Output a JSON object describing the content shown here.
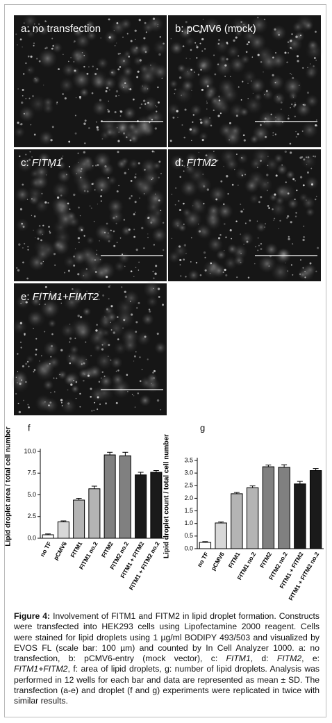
{
  "panels": [
    {
      "letter": "a:",
      "name": "no transfection"
    },
    {
      "letter": "b:",
      "name": "pCMV6 (mock)"
    },
    {
      "letter": "c:",
      "name": "FITM1"
    },
    {
      "letter": "d:",
      "name": "FITM2"
    },
    {
      "letter": "e:",
      "name": "FITM1+FIMT2"
    }
  ],
  "chart_data": [
    {
      "type": "bar",
      "title": "f",
      "ylabel": "Lipid droplet area / total cell number",
      "categories": [
        "no TF",
        "pCMV6",
        "FITM1",
        "FITM1 no.2",
        "FITM2",
        "FITM2 no.2",
        "FITM1 + FITM2",
        "FITM1 + FITM2 no.2"
      ],
      "values": [
        0.4,
        1.9,
        4.4,
        5.7,
        9.6,
        9.5,
        7.3,
        7.6
      ],
      "errors": [
        0.1,
        0.1,
        0.2,
        0.3,
        0.3,
        0.4,
        0.3,
        0.2
      ],
      "colors": [
        "#ffffff",
        "#d8d8d8",
        "#b4b4b4",
        "#b4b4b4",
        "#808080",
        "#808080",
        "#1a1a1a",
        "#1a1a1a"
      ],
      "ylim": [
        0,
        10
      ],
      "yticks": [
        {
          "value": 0,
          "label": "0.0"
        },
        {
          "value": 2.5,
          "label": "2.5"
        },
        {
          "value": 5,
          "label": "5.0"
        },
        {
          "value": 7.5,
          "label": "7.5"
        },
        {
          "value": 10,
          "label": "10.0"
        }
      ]
    },
    {
      "type": "bar",
      "title": "g",
      "ylabel": "Lipid droplet count / total cell number",
      "categories": [
        "no TF",
        "pCMV6",
        "FITM1",
        "FITM1 no.2",
        "FITM2",
        "FITM2 no.2",
        "FITM1 + FITM2",
        "FITM1 + FITM2 no.2"
      ],
      "values": [
        0.25,
        1.02,
        2.18,
        2.42,
        3.25,
        3.23,
        2.57,
        3.1
      ],
      "errors": [
        0.03,
        0.04,
        0.05,
        0.07,
        0.07,
        0.1,
        0.1,
        0.08
      ],
      "colors": [
        "#ffffff",
        "#d8d8d8",
        "#b4b4b4",
        "#b4b4b4",
        "#808080",
        "#808080",
        "#1a1a1a",
        "#1a1a1a"
      ],
      "ylim": [
        0,
        3.5
      ],
      "yticks": [
        {
          "value": 0,
          "label": "0.0"
        },
        {
          "value": 0.5,
          "label": "0.5"
        },
        {
          "value": 1,
          "label": "1.0"
        },
        {
          "value": 1.5,
          "label": "1.5"
        },
        {
          "value": 2,
          "label": "2.0"
        },
        {
          "value": 2.5,
          "label": "2.5"
        },
        {
          "value": 3,
          "label": "3.0"
        },
        {
          "value": 3.5,
          "label": "3.5"
        }
      ]
    }
  ],
  "caption": {
    "parts": [
      "Figure 4:",
      " Involvement of FITM1 and FITM2 in lipid droplet formation. Constructs were transfected into HEK293 cells using Lipofectamine 2000 reagent. Cells were stained for lipid droplets using 1 µg/ml BODIPY 493/503 and visualized by EVOS FL (scale bar: 100 µm) and counted by In Cell Analyzer 1000. a: no transfection, b: pCMV6-entry (mock vector), c: ",
      "FITM1",
      ", d: ",
      "FITM2",
      ", e: ",
      "FITM1+FITM2",
      ", f: area of lipid droplets, g: number of lipid droplets. Analysis was performed in 12 wells for each bar and data are represented as mean ± SD. The transfection (a-e) and droplet (f and g) experiments were replicated in twice with similar results."
    ]
  }
}
